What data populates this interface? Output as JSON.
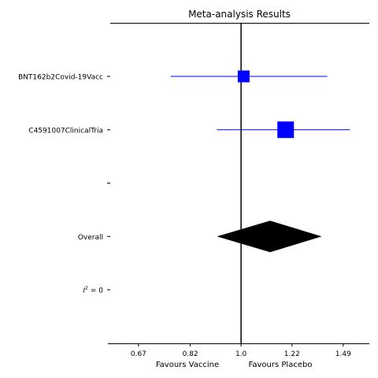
{
  "chart_data": {
    "type": "forest",
    "title": "Meta-analysis Results",
    "xscale": "log",
    "xlim": [
      0.6,
      1.65
    ],
    "xticks": [
      0.67,
      0.82,
      1.0,
      1.22,
      1.49
    ],
    "xtick_labels": [
      "0.67",
      "0.82",
      "1.0",
      "1.22",
      "1.49"
    ],
    "reference_line": 1.0,
    "xlabel_left": "Favours Vaccine",
    "xlabel_right": "Favours Placebo",
    "rows": [
      {
        "label": "BNT162b2Covid-19Vacc",
        "kind": "study",
        "estimate": 1.01,
        "ci": [
          0.76,
          1.4
        ],
        "marker_color": "#0000ff"
      },
      {
        "label": "C4591007ClinicalTria",
        "kind": "study",
        "estimate": 1.19,
        "ci": [
          0.91,
          1.53
        ],
        "marker_color": "#0000ff"
      },
      {
        "label": "",
        "kind": "blank"
      },
      {
        "label": "Overall",
        "kind": "pooled",
        "estimate": 1.12,
        "ci": [
          0.91,
          1.37
        ],
        "marker_color": "#000000"
      },
      {
        "label_base": "I",
        "label_sup": "2",
        "label_rest": " = 0",
        "kind": "stat"
      }
    ]
  }
}
